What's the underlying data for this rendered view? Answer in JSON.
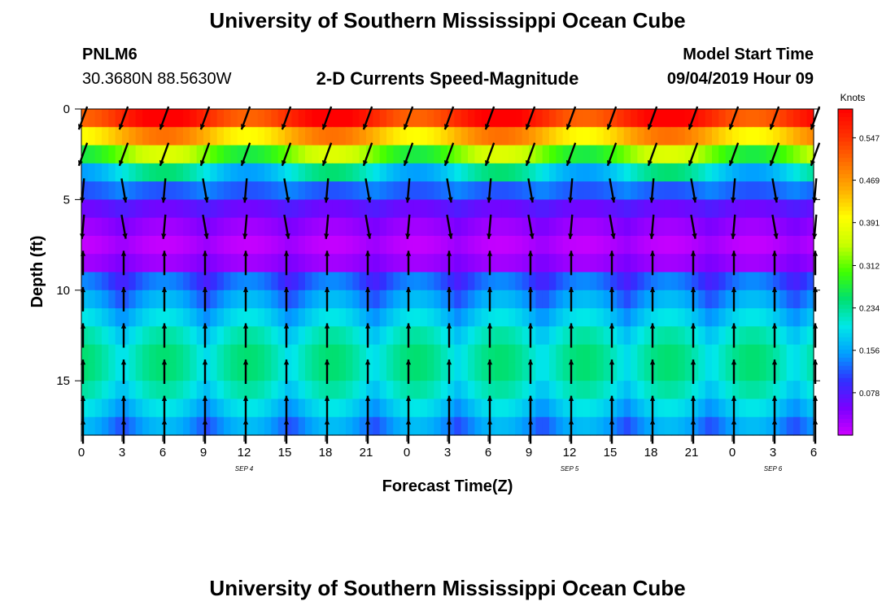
{
  "page_title": "University of Southern Mississippi Ocean Cube",
  "station_id": "PNLM6",
  "coordinates": "30.3680N 88.5630W",
  "model_start_label": "Model Start Time",
  "model_start_value": "09/04/2019 Hour 09",
  "footer_title": "University of Southern Mississippi Ocean Cube",
  "colors": {
    "speed_scale": [
      "#cc00ff",
      "#7a00ff",
      "#3030ff",
      "#00a0ff",
      "#00e8e8",
      "#00e070",
      "#40ff00",
      "#c8ff00",
      "#ffff00",
      "#ffb000",
      "#ff7000",
      "#ff3000",
      "#ff0000"
    ]
  },
  "chart_data": {
    "type": "heatmap",
    "title": "2-D Currents Speed-Magnitude",
    "xlabel": "Forecast Time(Z)",
    "ylabel": "Depth (ft)",
    "xlim": [
      0,
      54
    ],
    "ylim": [
      18,
      0
    ],
    "x_ticks": [
      0,
      3,
      6,
      9,
      12,
      15,
      18,
      21,
      24,
      27,
      30,
      33,
      36,
      39,
      42,
      45,
      48,
      51,
      54
    ],
    "x_tick_labels": [
      "0",
      "3",
      "6",
      "9",
      "12",
      "15",
      "18",
      "21",
      "0",
      "3",
      "6",
      "9",
      "12",
      "15",
      "18",
      "21",
      "0",
      "3",
      "6"
    ],
    "y_ticks": [
      0,
      5,
      10,
      15
    ],
    "y_tick_labels": [
      "0",
      "5",
      "10",
      "15"
    ],
    "date_labels": [
      {
        "text": "SEP 4",
        "x": 12
      },
      {
        "text": "SEP 5",
        "x": 36
      },
      {
        "text": "SEP 6",
        "x": 51
      }
    ],
    "colorbar": {
      "label": "Knots",
      "ticks": [
        0.078,
        0.156,
        0.234,
        0.312,
        0.391,
        0.469,
        0.547
      ],
      "tick_labels": [
        "0.078",
        "0.156",
        "0.234",
        "0.312",
        "0.391",
        "0.469",
        "0.547"
      ],
      "range": [
        0.0,
        0.6
      ]
    },
    "depth_layers_ft": [
      0.5,
      1.5,
      2.5,
      3.5,
      4.5,
      5.5,
      6.5,
      7.5,
      8.5,
      9.5,
      10.5,
      11.5,
      12.5,
      13.5,
      14.5,
      15.5,
      16.5,
      17.5
    ],
    "vector_depths_ft": [
      0.5,
      2.5,
      4.5,
      6.5,
      8.5,
      10.5,
      12.5,
      14.5,
      16.5,
      17.8
    ],
    "layer_speed_knots": [
      0.56,
      0.45,
      0.32,
      0.2,
      0.14,
      0.08,
      0.05,
      0.03,
      0.05,
      0.08,
      0.11,
      0.14,
      0.17,
      0.19,
      0.19,
      0.17,
      0.14,
      0.11
    ]
  }
}
